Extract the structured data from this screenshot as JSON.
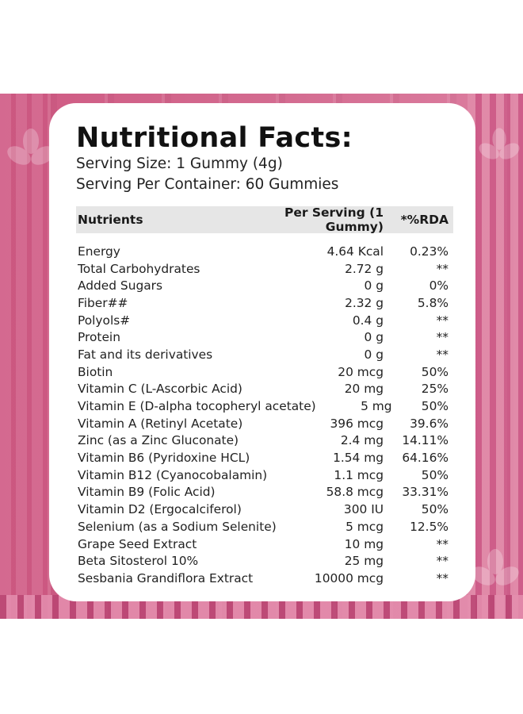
{
  "panel": {
    "title": "Nutritional Facts:",
    "serving_size": "Serving Size: 1 Gummy (4g)",
    "serving_per_container": "Serving Per Container: 60 Gummies"
  },
  "table": {
    "headers": {
      "nutrients": "Nutrients",
      "per_serving": "Per Serving (1 Gummy)",
      "rda": "*%RDA"
    },
    "rows": [
      {
        "name": "Energy",
        "value": "4.64 Kcal",
        "rda": "0.23%"
      },
      {
        "name": "Total Carbohydrates",
        "value": "2.72 g",
        "rda": "**"
      },
      {
        "name": "Added Sugars",
        "value": "0 g",
        "rda": "0%"
      },
      {
        "name": "Fiber##",
        "value": "2.32 g",
        "rda": "5.8%"
      },
      {
        "name": "Polyols#",
        "value": "0.4 g",
        "rda": "**"
      },
      {
        "name": "Protein",
        "value": "0 g",
        "rda": "**"
      },
      {
        "name": "Fat and its derivatives",
        "value": "0 g",
        "rda": "**"
      },
      {
        "name": "Biotin",
        "value": "20 mcg",
        "rda": "50%"
      },
      {
        "name": "Vitamin C (L-Ascorbic Acid)",
        "value": "20 mg",
        "rda": "25%"
      },
      {
        "name": "Vitamin E (D-alpha tocopheryl acetate)",
        "value": "5 mg",
        "rda": "50%"
      },
      {
        "name": "Vitamin A (Retinyl Acetate)",
        "value": "396 mcg",
        "rda": "39.6%"
      },
      {
        "name": "Zinc (as a Zinc Gluconate)",
        "value": "2.4 mg",
        "rda": "14.11%"
      },
      {
        "name": "Vitamin B6 (Pyridoxine HCL)",
        "value": "1.54 mg",
        "rda": "64.16%"
      },
      {
        "name": "Vitamin B12 (Cyanocobalamin)",
        "value": "1.1 mcg",
        "rda": "50%"
      },
      {
        "name": "Vitamin B9 (Folic Acid)",
        "value": "58.8 mcg",
        "rda": "33.31%"
      },
      {
        "name": "Vitamin D2 (Ergocalciferol)",
        "value": "300 IU",
        "rda": "50%"
      },
      {
        "name": "Selenium (as a Sodium Selenite)",
        "value": "5 mcg",
        "rda": "12.5%"
      },
      {
        "name": "Grape Seed Extract",
        "value": "10 mg",
        "rda": "**"
      },
      {
        "name": "Beta Sitosterol 10%",
        "value": "25 mg",
        "rda": "**"
      },
      {
        "name": "Sesbania Grandiflora Extract",
        "value": "10000 mcg",
        "rda": "**"
      }
    ]
  },
  "colors": {
    "background_band": "#d36a8f",
    "card": "#ffffff",
    "header_row": "#e6e6e6"
  }
}
